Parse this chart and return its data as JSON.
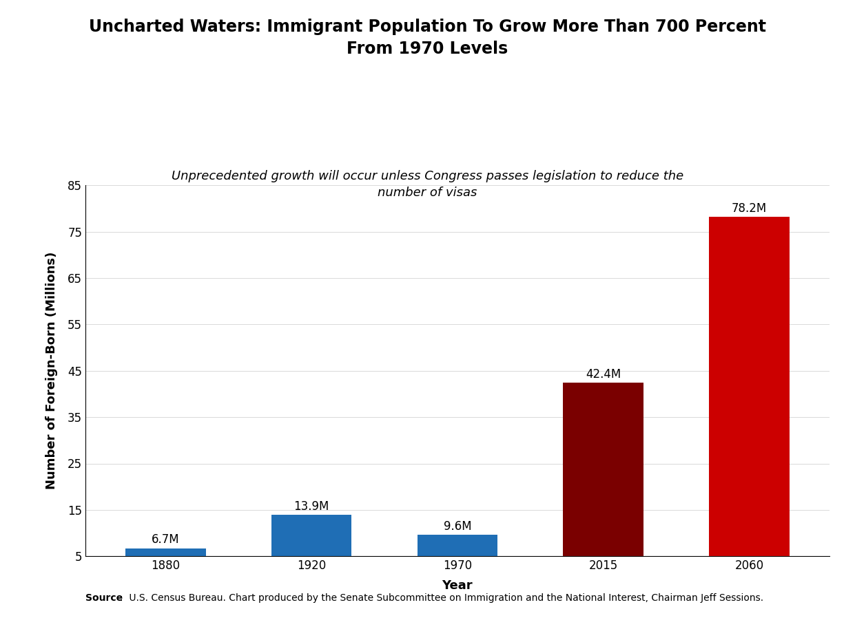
{
  "title": "Uncharted Waters: Immigrant Population To Grow More Than 700 Percent\nFrom 1970 Levels",
  "subtitle": "Unprecedented growth will occur unless Congress passes legislation to reduce the\nnumber of visas",
  "categories": [
    "1880",
    "1920",
    "1970",
    "2015",
    "2060"
  ],
  "values": [
    6.7,
    13.9,
    9.6,
    42.4,
    78.2
  ],
  "labels": [
    "6.7M",
    "13.9M",
    "9.6M",
    "42.4M",
    "78.2M"
  ],
  "bar_colors": [
    "#1f6eb5",
    "#1f6eb5",
    "#1f6eb5",
    "#7a0000",
    "#cc0000"
  ],
  "xlabel": "Year",
  "ylabel": "Number of Foreign-Born (Millions)",
  "ylim_min": 5,
  "ylim_max": 85,
  "yticks": [
    5,
    15,
    25,
    35,
    45,
    55,
    65,
    75,
    85
  ],
  "source_bold": "Source",
  "source_rest": ":  U.S. Census Bureau. Chart produced by the Senate Subcommittee on Immigration and the National Interest, Chairman Jeff Sessions.",
  "background_color": "#ffffff",
  "title_fontsize": 17,
  "subtitle_fontsize": 13,
  "label_fontsize": 12,
  "axis_label_fontsize": 13,
  "tick_fontsize": 12,
  "source_fontsize": 10,
  "bar_width": 0.55
}
